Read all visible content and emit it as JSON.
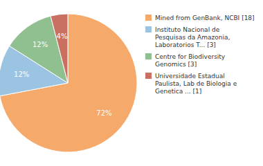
{
  "chart_data": {
    "type": "pie",
    "categories": [
      "Mined from GenBank, NCBI [18]",
      "Instituto Nacional de\nPesquisas da Amazonia,\nLaboratorios T... [3]",
      "Centre for Biodiversity\nGenomics [3]",
      "Universidade Estadual\nPaulista, Lab de Biologia e\nGenetica ... [1]"
    ],
    "values": [
      72,
      12,
      12,
      4
    ],
    "value_labels": [
      "72%",
      "12%",
      "12%",
      "4%"
    ],
    "colors": [
      "#F5A96B",
      "#9BC4E2",
      "#90C090",
      "#C97060"
    ],
    "data_labels": true,
    "legend": "right"
  }
}
